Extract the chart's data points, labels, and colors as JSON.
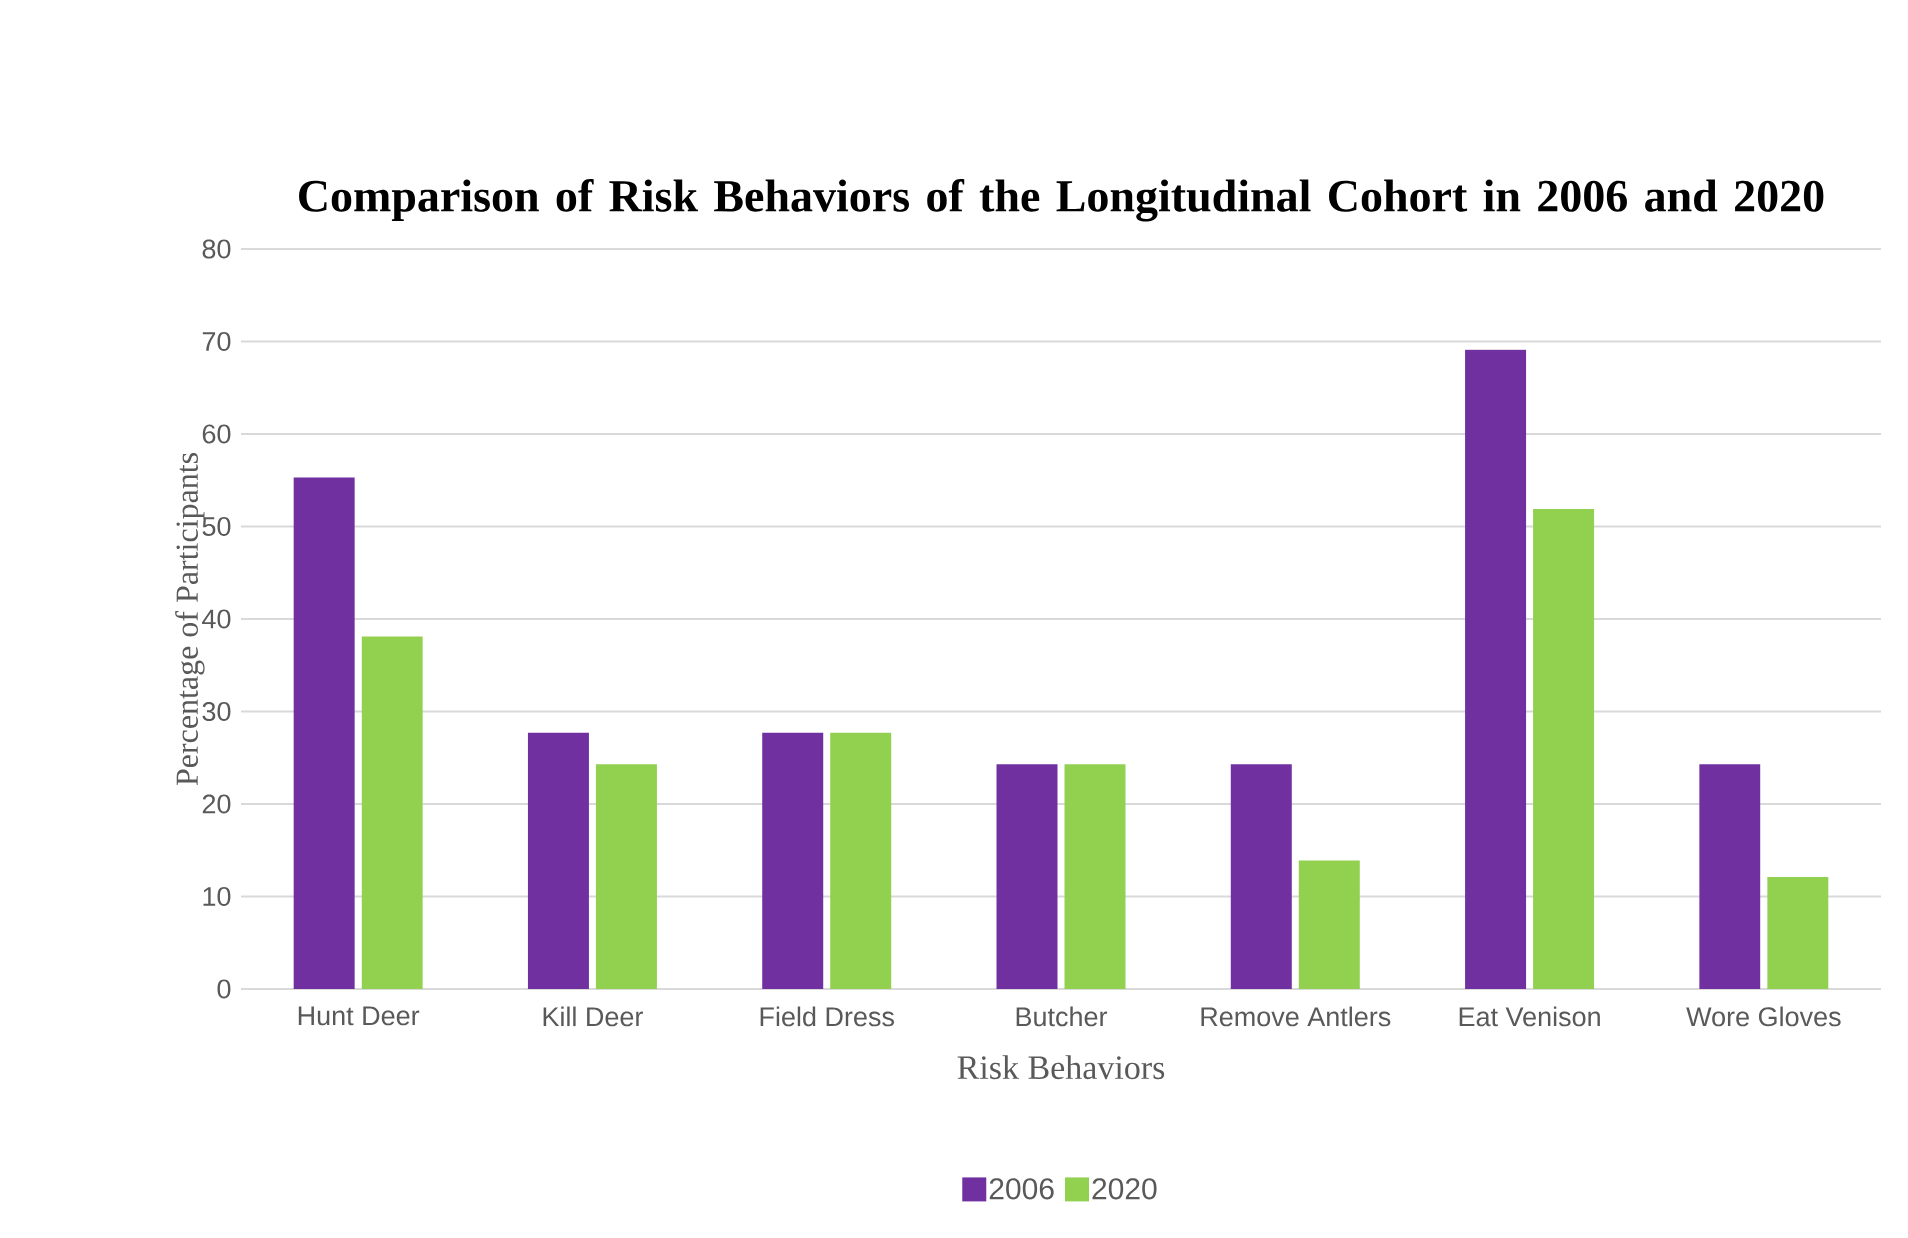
{
  "chart_data": {
    "type": "bar",
    "title": "Comparison  of Risk Behaviors  of the Longitudinal Cohort in 2006 and 2020",
    "xlabel": "Risk Behaviors",
    "ylabel": "Percentage of Participants",
    "categories": [
      "Hunt Deer",
      "Kill Deer",
      "Field Dress",
      "Butcher",
      "Remove Antlers",
      "Eat Venison",
      "Wore Gloves"
    ],
    "series": [
      {
        "name": "2006",
        "color": "#7030a0",
        "values": [
          55.3,
          27.7,
          27.7,
          24.3,
          24.3,
          69.1,
          24.3
        ]
      },
      {
        "name": "2020",
        "color": "#92d050",
        "values": [
          38.1,
          24.3,
          27.7,
          24.3,
          13.9,
          51.9,
          12.1
        ]
      }
    ],
    "ylim": [
      0,
      80
    ],
    "yticks": [
      0,
      10,
      20,
      30,
      40,
      50,
      60,
      70,
      80
    ],
    "grid": "y",
    "legend": "bottom"
  }
}
